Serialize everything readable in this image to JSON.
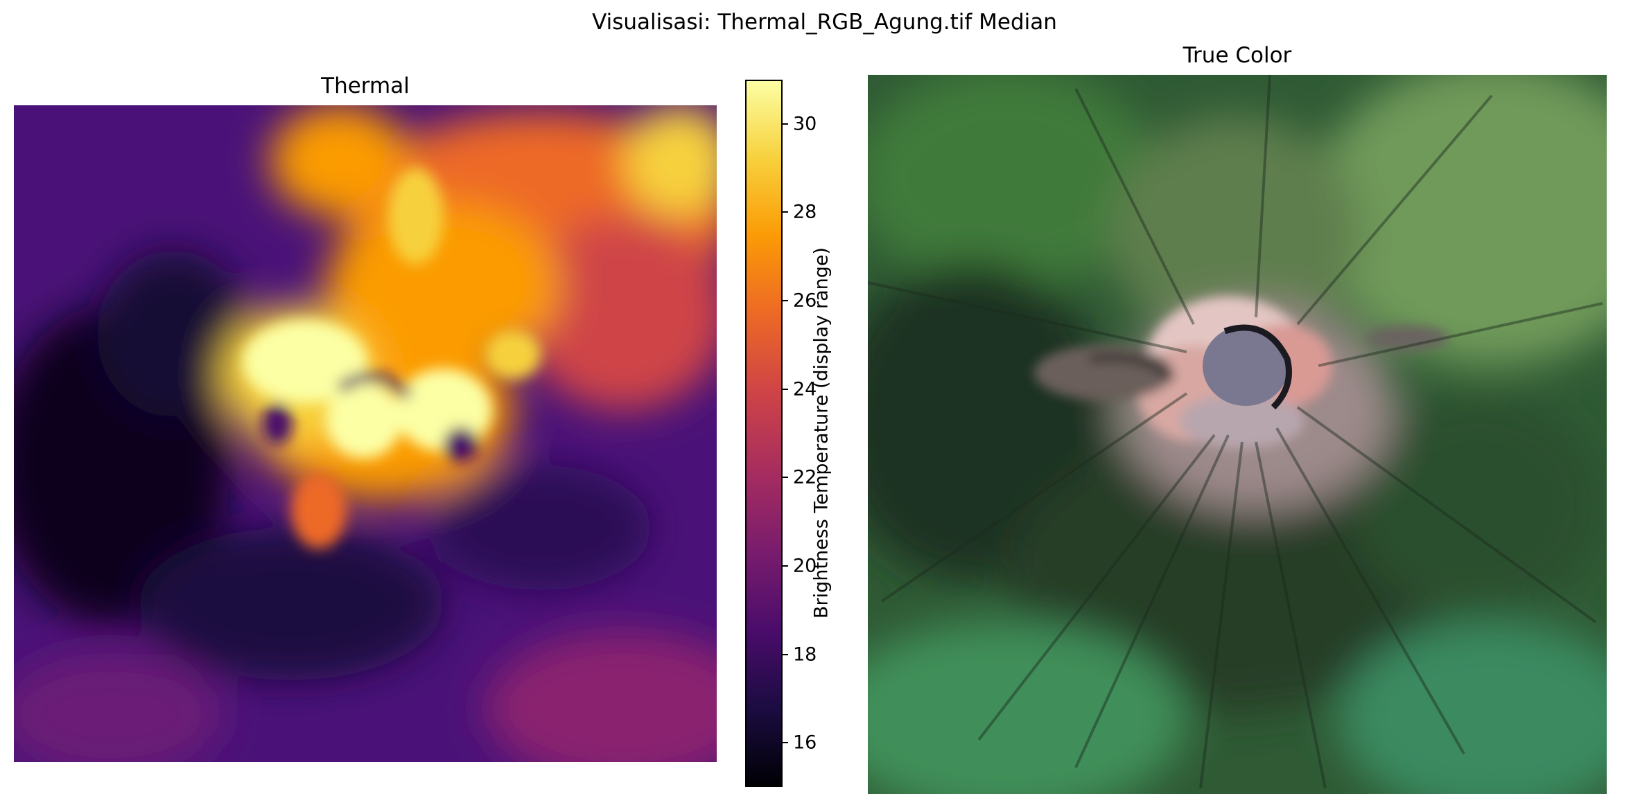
{
  "figure": {
    "title": "Visualisasi: Thermal_RGB_Agung.tif Median"
  },
  "thermal_panel": {
    "title": "Thermal",
    "colormap": "inferno",
    "description_colors": [
      "#000004",
      "#1b0c41",
      "#4a0c6b",
      "#781c6d",
      "#a52c60",
      "#cf4446",
      "#ed6925",
      "#fb9b06",
      "#f7d13d",
      "#fcffa4"
    ]
  },
  "colorbar": {
    "label": "Brightness Temperature (display range)",
    "ticks": [
      "16",
      "18",
      "20",
      "22",
      "24",
      "26",
      "28",
      "30"
    ],
    "range": [
      15,
      31
    ]
  },
  "rgb_panel": {
    "title": "True Color"
  }
}
